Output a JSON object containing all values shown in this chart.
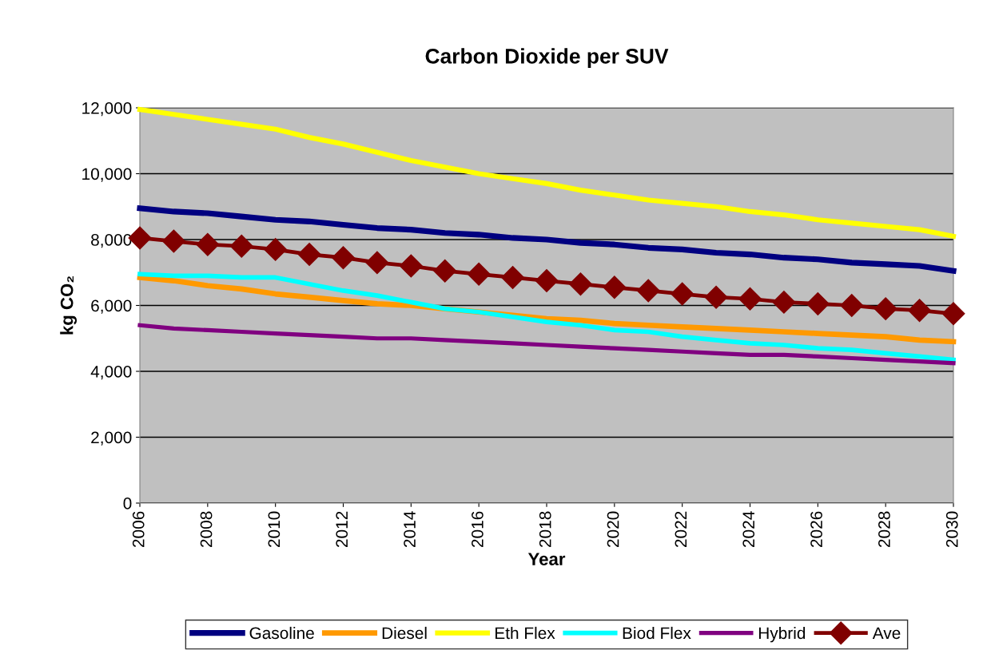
{
  "chart_data": {
    "type": "line",
    "title": "Carbon Dioxide per SUV",
    "xlabel": "Year",
    "ylabel": "kg CO₂",
    "x": [
      2006,
      2007,
      2008,
      2009,
      2010,
      2011,
      2012,
      2013,
      2014,
      2015,
      2016,
      2017,
      2018,
      2019,
      2020,
      2021,
      2022,
      2023,
      2024,
      2025,
      2026,
      2027,
      2028,
      2029,
      2030
    ],
    "xlim": [
      2006,
      2030
    ],
    "xticks": [
      2006,
      2008,
      2010,
      2012,
      2014,
      2016,
      2018,
      2020,
      2022,
      2024,
      2026,
      2028,
      2030
    ],
    "ylim": [
      0,
      12000
    ],
    "yticks": [
      {
        "value": 0,
        "label": "0"
      },
      {
        "value": 2000,
        "label": "2,000"
      },
      {
        "value": 4000,
        "label": "4,000"
      },
      {
        "value": 6000,
        "label": "6,000"
      },
      {
        "value": 8000,
        "label": "8,000"
      },
      {
        "value": 10000,
        "label": "10,000"
      },
      {
        "value": 12000,
        "label": "12,000"
      }
    ],
    "grid": "y",
    "legend": "bottom",
    "series": [
      {
        "name": "Gasoline",
        "color": "#000080",
        "values": [
          8950,
          8850,
          8800,
          8700,
          8600,
          8550,
          8450,
          8350,
          8300,
          8200,
          8150,
          8050,
          8000,
          7900,
          7850,
          7750,
          7700,
          7600,
          7550,
          7450,
          7400,
          7300,
          7250,
          7200,
          7050
        ]
      },
      {
        "name": "Diesel",
        "color": "#ff9900",
        "values": [
          6850,
          6750,
          6600,
          6500,
          6350,
          6250,
          6150,
          6050,
          6000,
          5900,
          5800,
          5700,
          5600,
          5550,
          5450,
          5400,
          5350,
          5300,
          5250,
          5200,
          5150,
          5100,
          5050,
          4950,
          4900
        ]
      },
      {
        "name": "Eth Flex",
        "color": "#ffff00",
        "values": [
          11950,
          11800,
          11650,
          11500,
          11350,
          11100,
          10900,
          10650,
          10400,
          10200,
          10000,
          9850,
          9700,
          9500,
          9350,
          9200,
          9100,
          9000,
          8850,
          8750,
          8600,
          8500,
          8400,
          8300,
          8100
        ]
      },
      {
        "name": "Biod Flex",
        "color": "#00ffff",
        "values": [
          6950,
          6900,
          6900,
          6850,
          6850,
          6650,
          6450,
          6300,
          6100,
          5900,
          5800,
          5650,
          5500,
          5400,
          5250,
          5200,
          5050,
          4950,
          4850,
          4800,
          4700,
          4650,
          4550,
          4450,
          4350
        ]
      },
      {
        "name": "Hybrid",
        "color": "#800080",
        "values": [
          5400,
          5300,
          5250,
          5200,
          5150,
          5100,
          5050,
          5000,
          5000,
          4950,
          4900,
          4850,
          4800,
          4750,
          4700,
          4650,
          4600,
          4550,
          4500,
          4500,
          4450,
          4400,
          4350,
          4300,
          4250
        ]
      },
      {
        "name": "Ave",
        "color": "#800000",
        "marker": "diamond",
        "values": [
          8050,
          7950,
          7850,
          7800,
          7700,
          7550,
          7450,
          7300,
          7200,
          7050,
          6950,
          6850,
          6750,
          6650,
          6550,
          6450,
          6350,
          6250,
          6200,
          6100,
          6050,
          6000,
          5900,
          5850,
          5750
        ]
      }
    ]
  }
}
